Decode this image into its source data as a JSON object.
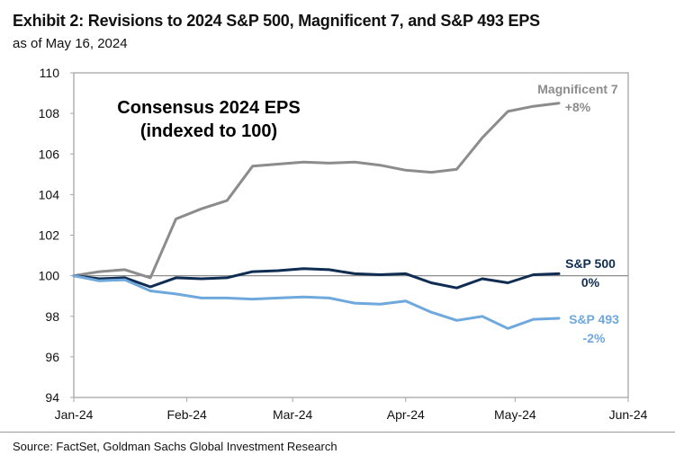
{
  "header": {
    "title": "Exhibit 2: Revisions to 2024 S&P 500, Magnificent 7, and S&P 493 EPS",
    "subtitle": "as of May 16, 2024"
  },
  "footer": {
    "source": "Source: FactSet, Goldman Sachs Global Investment Research"
  },
  "chart_data": {
    "type": "line",
    "title": "Consensus 2024 EPS",
    "title_line2": "(indexed to 100)",
    "xlabel": "",
    "ylabel": "",
    "ylim": [
      94,
      110
    ],
    "yticks": [
      94,
      96,
      98,
      100,
      102,
      104,
      106,
      108,
      110
    ],
    "x_tick_labels": [
      "Jan-24",
      "Feb-24",
      "Mar-24",
      "Apr-24",
      "May-24",
      "Jun-24"
    ],
    "x_tick_dates": [
      "2024-01-01",
      "2024-02-01",
      "2024-03-01",
      "2024-04-01",
      "2024-05-01",
      "2024-06-01"
    ],
    "x": [
      "2024-01-01",
      "2024-01-08",
      "2024-01-15",
      "2024-01-22",
      "2024-01-29",
      "2024-02-05",
      "2024-02-12",
      "2024-02-19",
      "2024-02-26",
      "2024-03-04",
      "2024-03-11",
      "2024-03-18",
      "2024-03-25",
      "2024-04-01",
      "2024-04-08",
      "2024-04-15",
      "2024-04-22",
      "2024-04-29",
      "2024-05-06",
      "2024-05-13"
    ],
    "reference_line": 100,
    "grid": false,
    "series": [
      {
        "name": "Magnificent 7",
        "end_label": "+8%",
        "color": "#8c8c8c",
        "values": [
          100,
          100.2,
          100.3,
          99.9,
          102.8,
          103.3,
          103.7,
          105.4,
          105.5,
          105.6,
          105.55,
          105.6,
          105.45,
          105.2,
          105.1,
          105.25,
          106.8,
          108.1,
          108.35,
          108.5
        ]
      },
      {
        "name": "S&P 500",
        "end_label": "0%",
        "color": "#0f2d52",
        "values": [
          100,
          99.85,
          99.9,
          99.45,
          99.9,
          99.85,
          99.9,
          100.2,
          100.25,
          100.35,
          100.3,
          100.1,
          100.05,
          100.1,
          99.65,
          99.4,
          99.85,
          99.65,
          100.05,
          100.1
        ]
      },
      {
        "name": "S&P 493",
        "end_label": "-2%",
        "color": "#6fa8dc",
        "values": [
          100,
          99.75,
          99.8,
          99.25,
          99.1,
          98.9,
          98.9,
          98.85,
          98.9,
          98.95,
          98.9,
          98.65,
          98.6,
          98.75,
          98.2,
          97.8,
          98.0,
          97.4,
          97.85,
          97.9
        ]
      }
    ]
  }
}
